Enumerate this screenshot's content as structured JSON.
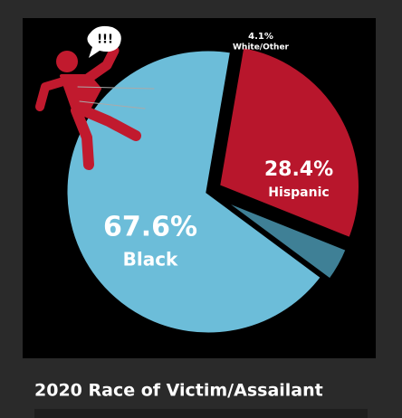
{
  "chart_data": {
    "type": "pie",
    "title": "2020 Race of Victim/Assailant",
    "annotation": "!!!",
    "categories": [
      "Black",
      "Hispanic",
      "White/Other"
    ],
    "values": [
      67.6,
      28.4,
      4.1
    ],
    "value_labels": [
      "67.6%",
      "28.4%",
      "4.1%"
    ],
    "colors": [
      "#6cbdd9",
      "#b8162c",
      "#3f8096"
    ]
  }
}
